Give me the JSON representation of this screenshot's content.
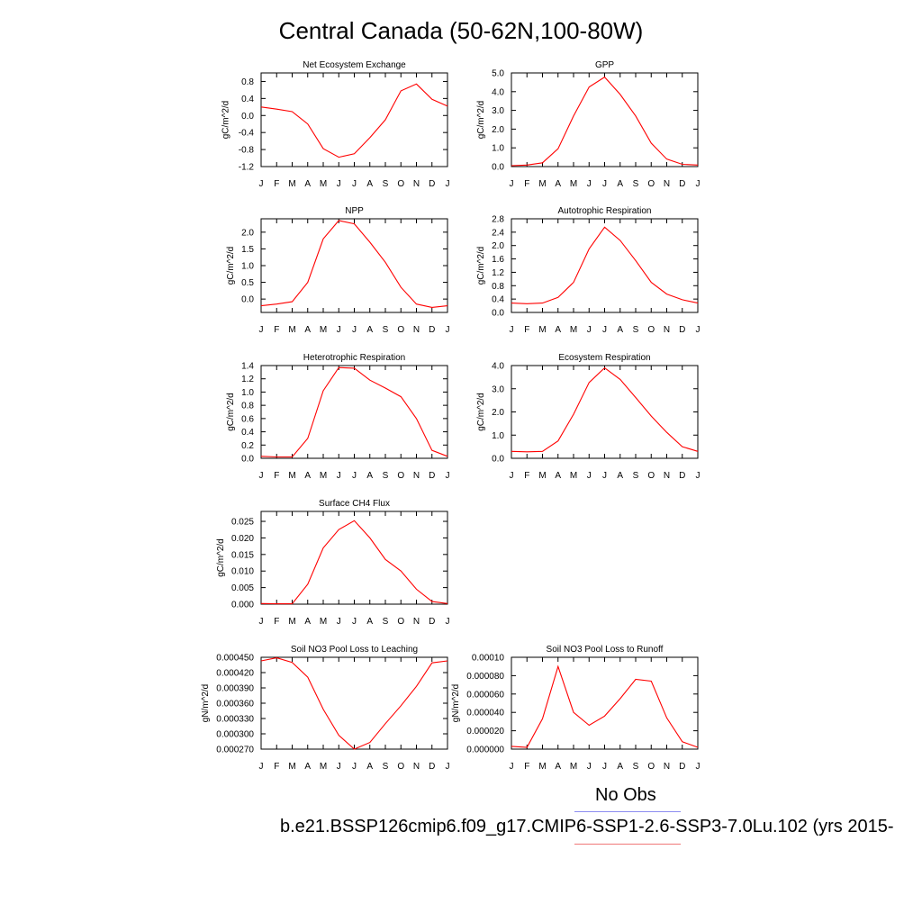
{
  "figure": {
    "title": "Central Canada (50-62N,100-80W)",
    "legend": {
      "obs_label": "No Obs",
      "obs_color": "#8c8cf0",
      "run_label": "b.e21.BSSP126cmip6.f09_g17.CMIP6-SSP1-2.6-SSP3-7.0Lu.102 (yrs 2015-",
      "run_color": "#f07878"
    },
    "series_color": "#ff0000"
  },
  "chart_data": [
    {
      "type": "line",
      "title": "Net Ecosystem Exchange",
      "ylabel": "gC/m^2/d",
      "x": [
        "J",
        "F",
        "M",
        "A",
        "M",
        "J",
        "J",
        "A",
        "S",
        "O",
        "N",
        "D",
        "J"
      ],
      "values": [
        0.2,
        0.15,
        0.09,
        -0.2,
        -0.78,
        -0.98,
        -0.9,
        -0.52,
        -0.1,
        0.58,
        0.74,
        0.38,
        0.22
      ],
      "ylim": [
        -1.2,
        1.0
      ],
      "yticks": [
        "0.8",
        "0.4",
        "0.0",
        "-0.4",
        "-0.8",
        "-1.2"
      ]
    },
    {
      "type": "line",
      "title": "GPP",
      "ylabel": "gC/m^2/d",
      "x": [
        "J",
        "F",
        "M",
        "A",
        "M",
        "J",
        "J",
        "A",
        "S",
        "O",
        "N",
        "D",
        "J"
      ],
      "values": [
        0.05,
        0.08,
        0.2,
        0.95,
        2.7,
        4.25,
        4.78,
        3.85,
        2.7,
        1.25,
        0.4,
        0.12,
        0.08
      ],
      "ylim": [
        0.0,
        5.0
      ],
      "yticks": [
        "5.0",
        "4.0",
        "3.0",
        "2.0",
        "1.0",
        "0.0"
      ]
    },
    {
      "type": "line",
      "title": "NPP",
      "ylabel": "gC/m^2/d",
      "x": [
        "J",
        "F",
        "M",
        "A",
        "M",
        "J",
        "J",
        "A",
        "S",
        "O",
        "N",
        "D",
        "J"
      ],
      "values": [
        -0.2,
        -0.15,
        -0.08,
        0.5,
        1.8,
        2.35,
        2.25,
        1.7,
        1.1,
        0.35,
        -0.15,
        -0.25,
        -0.2
      ],
      "ylim": [
        -0.4,
        2.4
      ],
      "yticks": [
        "2.0",
        "1.5",
        "1.0",
        "0.5",
        "0.0"
      ]
    },
    {
      "type": "line",
      "title": "Autotrophic Respiration",
      "ylabel": "gC/m^2/d",
      "x": [
        "J",
        "F",
        "M",
        "A",
        "M",
        "J",
        "J",
        "A",
        "S",
        "O",
        "N",
        "D",
        "J"
      ],
      "values": [
        0.28,
        0.26,
        0.28,
        0.45,
        0.9,
        1.9,
        2.55,
        2.15,
        1.55,
        0.9,
        0.55,
        0.38,
        0.28
      ],
      "ylim": [
        0.0,
        2.8
      ],
      "yticks": [
        "2.8",
        "2.4",
        "2.0",
        "1.6",
        "1.2",
        "0.8",
        "0.4",
        "0.0"
      ]
    },
    {
      "type": "line",
      "title": "Heterotrophic Respiration",
      "ylabel": "gC/m^2/d",
      "x": [
        "J",
        "F",
        "M",
        "A",
        "M",
        "J",
        "J",
        "A",
        "S",
        "O",
        "N",
        "D",
        "J"
      ],
      "values": [
        0.03,
        0.02,
        0.02,
        0.3,
        1.02,
        1.37,
        1.36,
        1.18,
        1.06,
        0.93,
        0.6,
        0.12,
        0.03
      ],
      "ylim": [
        0.0,
        1.4
      ],
      "yticks": [
        "1.4",
        "1.2",
        "1.0",
        "0.8",
        "0.6",
        "0.4",
        "0.2",
        "0.0"
      ]
    },
    {
      "type": "line",
      "title": "Ecosystem Respiration",
      "ylabel": "gC/m^2/d",
      "x": [
        "J",
        "F",
        "M",
        "A",
        "M",
        "J",
        "J",
        "A",
        "S",
        "O",
        "N",
        "D",
        "J"
      ],
      "values": [
        0.3,
        0.28,
        0.3,
        0.75,
        1.9,
        3.27,
        3.9,
        3.4,
        2.62,
        1.82,
        1.12,
        0.5,
        0.3
      ],
      "ylim": [
        0.0,
        4.0
      ],
      "yticks": [
        "4.0",
        "3.0",
        "2.0",
        "1.0",
        "0.0"
      ]
    },
    {
      "type": "line",
      "title": "Surface CH4 Flux",
      "ylabel": "gC/m^2/d",
      "x": [
        "J",
        "F",
        "M",
        "A",
        "M",
        "J",
        "J",
        "A",
        "S",
        "O",
        "N",
        "D",
        "J"
      ],
      "values": [
        0.0002,
        0.0001,
        0.0001,
        0.006,
        0.017,
        0.0225,
        0.0252,
        0.02,
        0.0135,
        0.01,
        0.0045,
        0.0008,
        0.0002
      ],
      "ylim": [
        0.0,
        0.028
      ],
      "yticks": [
        "0.025",
        "0.020",
        "0.015",
        "0.010",
        "0.005",
        "0.000"
      ]
    },
    {
      "type": "line",
      "title": "Soil NO3 Pool Loss to Leaching",
      "ylabel": "gN/m^2/d",
      "x": [
        "J",
        "F",
        "M",
        "A",
        "M",
        "J",
        "J",
        "A",
        "S",
        "O",
        "N",
        "D",
        "J"
      ],
      "values": [
        0.000443,
        0.000449,
        0.00044,
        0.000411,
        0.000348,
        0.000297,
        0.00027,
        0.000283,
        0.00032,
        0.000355,
        0.000393,
        0.000439,
        0.000443
      ],
      "ylim": [
        0.00027,
        0.00045
      ],
      "yticks": [
        "0.000450",
        "0.000420",
        "0.000390",
        "0.000360",
        "0.000330",
        "0.000300",
        "0.000270"
      ]
    },
    {
      "type": "line",
      "title": "Soil NO3 Pool Loss to Runoff",
      "ylabel": "gN/m^2/d",
      "x": [
        "J",
        "F",
        "M",
        "A",
        "M",
        "J",
        "J",
        "A",
        "S",
        "O",
        "N",
        "D",
        "J"
      ],
      "values": [
        3e-06,
        2e-06,
        3.3e-05,
        9e-05,
        4e-05,
        2.6e-05,
        3.6e-05,
        5.5e-05,
        7.6e-05,
        7.4e-05,
        3.4e-05,
        8e-06,
        2e-06
      ],
      "ylim": [
        0.0,
        0.0001
      ],
      "yticks": [
        "0.00010",
        "0.000080",
        "0.000060",
        "0.000040",
        "0.000020",
        "0.000000"
      ]
    }
  ]
}
